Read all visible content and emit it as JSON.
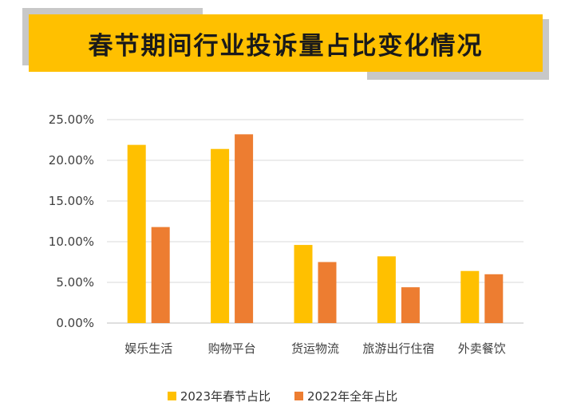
{
  "header": {
    "title": "春节期间行业投诉量占比变化情况"
  },
  "chart_data": {
    "type": "bar",
    "title": "春节期间行业投诉量占比变化情况",
    "categories": [
      "娱乐生活",
      "购物平台",
      "货运物流",
      "旅游出行住宿",
      "外卖餐饮"
    ],
    "series": [
      {
        "name": "2023年春节占比",
        "values": [
          21.9,
          21.4,
          9.6,
          8.2,
          6.4
        ],
        "color": "#ffc000"
      },
      {
        "name": "2022年全年占比",
        "values": [
          11.8,
          23.2,
          7.5,
          4.4,
          6.0
        ],
        "color": "#ed7d31"
      }
    ],
    "yticks": [
      "0.00%",
      "5.00%",
      "10.00%",
      "15.00%",
      "20.00%",
      "25.00%"
    ],
    "ylim": [
      0,
      25
    ],
    "grid": true,
    "legend_position": "bottom"
  }
}
